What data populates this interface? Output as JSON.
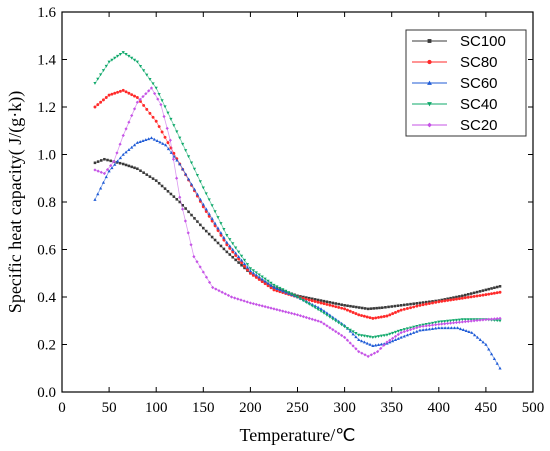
{
  "chart_data": {
    "type": "line",
    "xlabel": "Temperature/℃",
    "ylabel": "Specific heat capacity( J/(g·k))",
    "xlim": [
      0,
      500
    ],
    "ylim": [
      0.0,
      1.6
    ],
    "xticks": [
      0,
      50,
      100,
      150,
      200,
      250,
      300,
      350,
      400,
      450,
      500
    ],
    "yticks": [
      0.0,
      0.2,
      0.4,
      0.6,
      0.8,
      1.0,
      1.2,
      1.4,
      1.6
    ],
    "xtick_labels": [
      "0",
      "50",
      "100",
      "150",
      "200",
      "250",
      "300",
      "350",
      "400",
      "450",
      "500"
    ],
    "ytick_labels": [
      "0.0",
      "0.2",
      "0.4",
      "0.6",
      "0.8",
      "1.0",
      "1.2",
      "1.4",
      "1.6"
    ],
    "grid": false,
    "legend_position": "top-right",
    "series": [
      {
        "name": "SC100",
        "color": "#3a3a3a",
        "marker": "square",
        "x": [
          35,
          45,
          55,
          65,
          80,
          100,
          125,
          150,
          175,
          200,
          225,
          250,
          275,
          300,
          325,
          340,
          360,
          380,
          400,
          425,
          450,
          465
        ],
        "y": [
          0.965,
          0.98,
          0.97,
          0.96,
          0.94,
          0.89,
          0.8,
          0.69,
          0.59,
          0.5,
          0.44,
          0.405,
          0.385,
          0.365,
          0.35,
          0.355,
          0.365,
          0.375,
          0.385,
          0.405,
          0.43,
          0.445
        ]
      },
      {
        "name": "SC80",
        "color": "#ff2a2a",
        "marker": "circle",
        "x": [
          35,
          50,
          65,
          80,
          100,
          125,
          150,
          175,
          200,
          225,
          250,
          275,
          300,
          315,
          330,
          345,
          360,
          380,
          400,
          425,
          450,
          465
        ],
        "y": [
          1.2,
          1.25,
          1.27,
          1.24,
          1.14,
          0.96,
          0.78,
          0.62,
          0.5,
          0.43,
          0.4,
          0.375,
          0.35,
          0.325,
          0.31,
          0.32,
          0.345,
          0.365,
          0.38,
          0.395,
          0.41,
          0.42
        ]
      },
      {
        "name": "SC60",
        "color": "#1f5bd6",
        "marker": "triangle-up",
        "x": [
          35,
          50,
          65,
          80,
          95,
          110,
          125,
          150,
          175,
          200,
          225,
          250,
          275,
          300,
          315,
          330,
          345,
          360,
          380,
          400,
          420,
          435,
          450,
          465
        ],
        "y": [
          0.81,
          0.93,
          1.0,
          1.05,
          1.07,
          1.04,
          0.96,
          0.79,
          0.63,
          0.51,
          0.44,
          0.4,
          0.35,
          0.28,
          0.22,
          0.195,
          0.205,
          0.23,
          0.26,
          0.27,
          0.27,
          0.25,
          0.2,
          0.1
        ]
      },
      {
        "name": "SC40",
        "color": "#0ea86a",
        "marker": "triangle-down",
        "x": [
          35,
          50,
          65,
          80,
          100,
          125,
          150,
          175,
          200,
          225,
          250,
          275,
          300,
          315,
          330,
          345,
          360,
          380,
          400,
          425,
          450,
          465
        ],
        "y": [
          1.3,
          1.39,
          1.43,
          1.39,
          1.28,
          1.07,
          0.86,
          0.66,
          0.52,
          0.45,
          0.4,
          0.34,
          0.275,
          0.24,
          0.23,
          0.24,
          0.26,
          0.28,
          0.295,
          0.305,
          0.305,
          0.3
        ]
      },
      {
        "name": "SC20",
        "color": "#c553e6",
        "marker": "diamond",
        "x": [
          35,
          45,
          55,
          65,
          80,
          95,
          105,
          115,
          125,
          140,
          160,
          180,
          200,
          225,
          250,
          275,
          300,
          315,
          325,
          335,
          345,
          360,
          380,
          400,
          425,
          450,
          465
        ],
        "y": [
          0.935,
          0.92,
          0.97,
          1.08,
          1.22,
          1.28,
          1.21,
          1.06,
          0.82,
          0.57,
          0.44,
          0.4,
          0.375,
          0.35,
          0.325,
          0.295,
          0.23,
          0.17,
          0.15,
          0.17,
          0.21,
          0.25,
          0.275,
          0.285,
          0.295,
          0.305,
          0.31
        ]
      }
    ]
  }
}
